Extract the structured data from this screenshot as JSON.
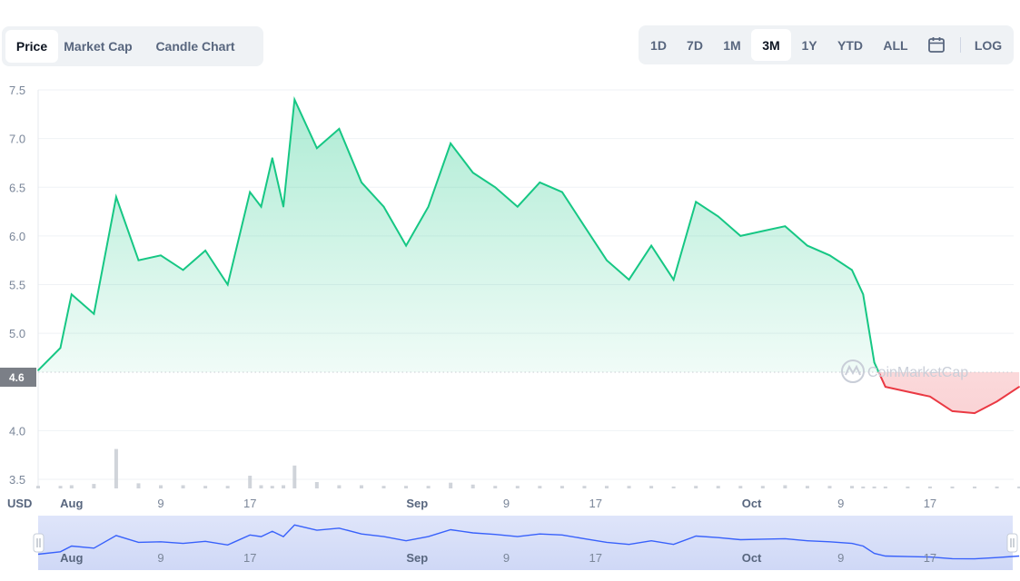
{
  "tabs": [
    {
      "label": "Price",
      "active": true
    },
    {
      "label": "Market Cap",
      "active": false
    },
    {
      "label": "Candle Chart",
      "active": false
    }
  ],
  "ranges": [
    {
      "label": "1D",
      "active": false
    },
    {
      "label": "7D",
      "active": false
    },
    {
      "label": "1M",
      "active": false
    },
    {
      "label": "3M",
      "active": true
    },
    {
      "label": "1Y",
      "active": false
    },
    {
      "label": "YTD",
      "active": false
    },
    {
      "label": "ALL",
      "active": false
    },
    {
      "label": "LOG",
      "active": false
    }
  ],
  "icons": {
    "calendar": "calendar-icon"
  },
  "watermark": "CoinMarketCap",
  "currency_label": "USD",
  "current_price_label": "4.6",
  "colors": {
    "up": "#16c784",
    "down": "#ea3943",
    "nav_line": "#3861fb",
    "accent_bg": "#eff2f5"
  },
  "chart_data": {
    "type": "line",
    "ylim": [
      3.5,
      7.5
    ],
    "yticks": [
      "7.5",
      "7.0",
      "6.5",
      "6.0",
      "5.5",
      "5.0",
      "4.0",
      "3.5"
    ],
    "xticks": [
      "Aug",
      "9",
      "17",
      "Sep",
      "9",
      "17",
      "Oct",
      "9",
      "17"
    ],
    "reference_price": 4.6,
    "grid": true,
    "x": [
      "Jul 29",
      "Jul 31",
      "Aug 1",
      "Aug 3",
      "Aug 5",
      "Aug 7",
      "Aug 9",
      "Aug 11",
      "Aug 13",
      "Aug 15",
      "Aug 17",
      "Aug 18",
      "Aug 19",
      "Aug 20",
      "Aug 21",
      "Aug 23",
      "Aug 25",
      "Aug 27",
      "Aug 29",
      "Aug 31",
      "Sep 2",
      "Sep 4",
      "Sep 6",
      "Sep 8",
      "Sep 10",
      "Sep 12",
      "Sep 14",
      "Sep 16",
      "Sep 18",
      "Sep 20",
      "Sep 22",
      "Sep 24",
      "Sep 26",
      "Sep 28",
      "Sep 30",
      "Oct 2",
      "Oct 4",
      "Oct 6",
      "Oct 8",
      "Oct 10",
      "Oct 11",
      "Oct 12",
      "Oct 13",
      "Oct 15",
      "Oct 17",
      "Oct 19",
      "Oct 21",
      "Oct 23",
      "Oct 25"
    ],
    "series": [
      {
        "values": [
          4.62,
          4.85,
          5.4,
          5.2,
          6.4,
          5.75,
          5.8,
          5.65,
          5.85,
          5.5,
          6.45,
          6.3,
          6.8,
          6.3,
          7.4,
          6.9,
          7.1,
          6.55,
          6.3,
          5.9,
          6.3,
          6.95,
          6.65,
          6.5,
          6.3,
          6.55,
          6.45,
          6.1,
          5.75,
          5.55,
          5.9,
          5.55,
          6.35,
          6.2,
          6.0,
          6.05,
          6.1,
          5.9,
          5.8,
          5.65,
          5.4,
          4.7,
          4.45,
          4.4,
          4.35,
          4.2,
          4.18,
          4.3,
          4.45
        ]
      }
    ],
    "volume": [
      0.04,
      0.04,
      0.05,
      0.07,
      0.62,
      0.08,
      0.05,
      0.05,
      0.04,
      0.04,
      0.2,
      0.05,
      0.04,
      0.05,
      0.36,
      0.1,
      0.05,
      0.05,
      0.04,
      0.04,
      0.04,
      0.09,
      0.06,
      0.04,
      0.04,
      0.04,
      0.04,
      0.04,
      0.04,
      0.04,
      0.04,
      0.03,
      0.04,
      0.04,
      0.04,
      0.04,
      0.05,
      0.04,
      0.04,
      0.04,
      0.03,
      0.03,
      0.03,
      0.03,
      0.03,
      0.03,
      0.03,
      0.03,
      0.03
    ]
  }
}
